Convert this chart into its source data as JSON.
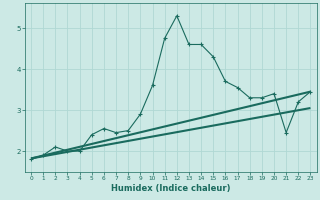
{
  "xlabel": "Humidex (Indice chaleur)",
  "background_color": "#cce9e5",
  "grid_color": "#b0d8d4",
  "line_color": "#1a6b5e",
  "xlim": [
    -0.5,
    23.5
  ],
  "ylim": [
    1.5,
    5.6
  ],
  "yticks": [
    2,
    3,
    4,
    5
  ],
  "xticks": [
    0,
    1,
    2,
    3,
    4,
    5,
    6,
    7,
    8,
    9,
    10,
    11,
    12,
    13,
    14,
    15,
    16,
    17,
    18,
    19,
    20,
    21,
    22,
    23
  ],
  "curve1_x": [
    0,
    1,
    2,
    3,
    4,
    5,
    6,
    7,
    8,
    9,
    10,
    11,
    12,
    13,
    14,
    15,
    16,
    17,
    18,
    19,
    20,
    21,
    22,
    23
  ],
  "curve1_y": [
    1.8,
    1.9,
    2.1,
    2.0,
    2.0,
    2.4,
    2.55,
    2.45,
    2.5,
    2.9,
    3.6,
    4.75,
    5.3,
    4.6,
    4.6,
    4.3,
    3.7,
    3.55,
    3.3,
    3.3,
    3.4,
    2.45,
    3.2,
    3.45
  ],
  "line1_x": [
    0,
    23
  ],
  "line1_y": [
    1.82,
    3.45
  ],
  "line2_x": [
    0,
    23
  ],
  "line2_y": [
    1.82,
    3.05
  ]
}
